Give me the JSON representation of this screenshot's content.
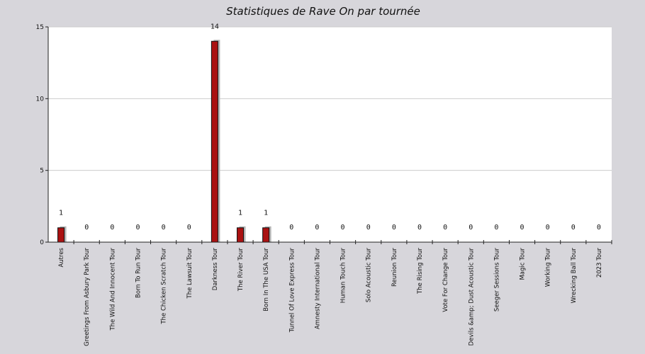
{
  "chart_data": {
    "type": "bar",
    "title": "Statistiques de Rave On par tournée",
    "xlabel": "",
    "ylabel": "",
    "ylim": [
      0,
      15
    ],
    "yticks": [
      0,
      5,
      10,
      15
    ],
    "grid": true,
    "categories": [
      "Autres",
      "Greetings From Asbury Park Tour",
      "The Wild And Innocent Tour",
      "Born To Run Tour",
      "The Chicken Scratch Tour",
      "The Lawsuit Tour",
      "Darkness Tour",
      "The River Tour",
      "Born In The USA Tour",
      "Tunnel Of Love Express Tour",
      "Amnesty International Tour",
      "Human Touch Tour",
      "Solo Acoustic Tour",
      "Reunion Tour",
      "The Rising Tour",
      "Vote For Change Tour",
      "Devils &amp; Dust Acoustic Tour",
      "Seeger Sessions Tour",
      "Magic Tour",
      "Working Tour",
      "Wrecking Ball Tour",
      "2023 Tour"
    ],
    "values": [
      1,
      0,
      0,
      0,
      0,
      0,
      14,
      1,
      1,
      0,
      0,
      0,
      0,
      0,
      0,
      0,
      0,
      0,
      0,
      0,
      0,
      0
    ],
    "colors": {
      "bar": "#aa1111",
      "shadow": "#b5b5b5",
      "plot_bg": "#ffffff",
      "page_bg": "#d7d6db",
      "grid": "#cccccc"
    }
  }
}
